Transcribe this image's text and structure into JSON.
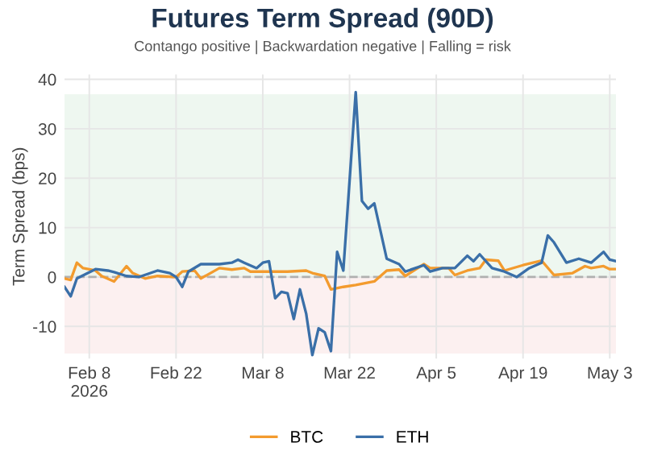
{
  "chart_data": {
    "type": "line",
    "title": "Futures Term Spread (90D)",
    "subtitle": "Contango positive | Backwardation negative | Falling = risk",
    "ylabel": "Term Spread (bps)",
    "xlim": [
      "2026-02-04",
      "2026-05-04"
    ],
    "xticks": [
      {
        "value": "2026-02-08",
        "label": "Feb 8\n2026"
      },
      {
        "value": "2026-02-22",
        "label": "Feb 22"
      },
      {
        "value": "2026-03-08",
        "label": "Mar 8"
      },
      {
        "value": "2026-03-22",
        "label": "Mar 22"
      },
      {
        "value": "2026-04-05",
        "label": "Apr 5"
      },
      {
        "value": "2026-04-19",
        "label": "Apr 19"
      },
      {
        "value": "2026-05-03",
        "label": "May 3"
      }
    ],
    "ylim": [
      -16.5,
      41
    ],
    "yticks": [
      -10,
      0,
      10,
      20,
      30,
      40
    ],
    "grid": true,
    "legend": "bottom",
    "bands": [
      {
        "axis": "y",
        "from": 0,
        "to": 37,
        "color": "#eef7f0"
      },
      {
        "axis": "y",
        "from": -15.5,
        "to": 0,
        "color": "#fcf0f0"
      }
    ],
    "ref_lines": [
      {
        "axis": "y",
        "value": 0,
        "color": "#b0b0b0",
        "line_style": "dashed"
      }
    ],
    "series": [
      {
        "name": "BTC",
        "color": "#f39b2e",
        "x": [
          "2026-02-04",
          "2026-02-05",
          "2026-02-06",
          "2026-02-07",
          "2026-02-09",
          "2026-02-10",
          "2026-02-12",
          "2026-02-14",
          "2026-02-15",
          "2026-02-17",
          "2026-02-19",
          "2026-02-22",
          "2026-02-23",
          "2026-02-25",
          "2026-02-26",
          "2026-03-01",
          "2026-03-03",
          "2026-03-05",
          "2026-03-06",
          "2026-03-12",
          "2026-03-15",
          "2026-03-16",
          "2026-03-18",
          "2026-03-19",
          "2026-03-21",
          "2026-03-23",
          "2026-03-26",
          "2026-03-28",
          "2026-03-30",
          "2026-03-31",
          "2026-04-03",
          "2026-04-04",
          "2026-04-07",
          "2026-04-08",
          "2026-04-10",
          "2026-04-12",
          "2026-04-13",
          "2026-04-15",
          "2026-04-16",
          "2026-04-19",
          "2026-04-22",
          "2026-04-24",
          "2026-04-27",
          "2026-04-29",
          "2026-04-30",
          "2026-05-02",
          "2026-05-03",
          "2026-05-04"
        ],
        "values": [
          -0.3,
          -0.6,
          2.9,
          1.8,
          1.3,
          0.2,
          -0.9,
          2.2,
          0.8,
          -0.3,
          0.2,
          0,
          1.1,
          1.3,
          -0.3,
          1.8,
          1.5,
          1.8,
          1.1,
          1.1,
          1.3,
          0.8,
          0.2,
          -2.5,
          -2,
          -1.6,
          -0.9,
          1.3,
          1.5,
          0.2,
          2.6,
          1.8,
          1.8,
          0.4,
          1.3,
          1.8,
          3.5,
          3.3,
          1.3,
          2.4,
          3.3,
          0.4,
          0.8,
          2.2,
          1.8,
          2.2,
          1.6,
          1.6
        ]
      },
      {
        "name": "ETH",
        "color": "#3a6fa8",
        "x": [
          "2026-02-04",
          "2026-02-05",
          "2026-02-06",
          "2026-02-09",
          "2026-02-11",
          "2026-02-12",
          "2026-02-14",
          "2026-02-16",
          "2026-02-19",
          "2026-02-21",
          "2026-02-22",
          "2026-02-23",
          "2026-02-24",
          "2026-02-26",
          "2026-03-01",
          "2026-03-03",
          "2026-03-04",
          "2026-03-05",
          "2026-03-07",
          "2026-03-08",
          "2026-03-09",
          "2026-03-10",
          "2026-03-11",
          "2026-03-12",
          "2026-03-13",
          "2026-03-14",
          "2026-03-15",
          "2026-03-16",
          "2026-03-17",
          "2026-03-18",
          "2026-03-19",
          "2026-03-20",
          "2026-03-21",
          "2026-03-23",
          "2026-03-24",
          "2026-03-25",
          "2026-03-26",
          "2026-03-28",
          "2026-03-30",
          "2026-03-31",
          "2026-04-03",
          "2026-04-04",
          "2026-04-06",
          "2026-04-08",
          "2026-04-10",
          "2026-04-11",
          "2026-04-12",
          "2026-04-14",
          "2026-04-16",
          "2026-04-18",
          "2026-04-20",
          "2026-04-22",
          "2026-04-23",
          "2026-04-24",
          "2026-04-26",
          "2026-04-28",
          "2026-04-30",
          "2026-05-02",
          "2026-05-03",
          "2026-05-04"
        ],
        "values": [
          -2,
          -3.9,
          -0.3,
          1.6,
          1.3,
          1.0,
          0.2,
          0,
          1.3,
          0.8,
          0,
          -2,
          1.1,
          2.6,
          2.6,
          2.9,
          3.5,
          2.9,
          1.8,
          2.9,
          3.2,
          -4.3,
          -3,
          -3.3,
          -8.5,
          -2.5,
          -7.4,
          -15.8,
          -10.4,
          -11.2,
          -15,
          5.1,
          1.3,
          37.4,
          15.4,
          13.8,
          14.9,
          3.7,
          2.6,
          1.1,
          2.4,
          1.1,
          1.8,
          1.8,
          4.3,
          3.2,
          4.6,
          1.8,
          1.1,
          0,
          1.8,
          2.9,
          8.4,
          7,
          2.9,
          3.7,
          2.9,
          5.1,
          3.5,
          3.2
        ]
      }
    ]
  }
}
